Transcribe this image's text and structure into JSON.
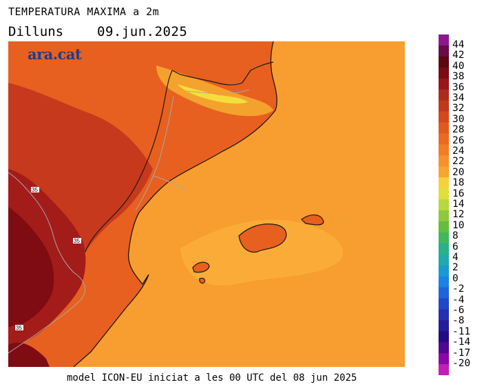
{
  "header": {
    "title": "TEMPERATURA MAXIMA a 2m",
    "day": "Dilluns",
    "date": "09.jun.2025"
  },
  "logo": "ara.cat",
  "footer": "model ICON-EU iniciat a les 00 UTC del 08 jun 2025",
  "map_labels": [
    "35",
    "35",
    "35"
  ],
  "colorbar": {
    "levels": [
      "44",
      "42",
      "40",
      "38",
      "36",
      "34",
      "32",
      "30",
      "28",
      "26",
      "24",
      "22",
      "20",
      "18",
      "16",
      "14",
      "12",
      "10",
      "8",
      "6",
      "4",
      "2",
      "0",
      "-2",
      "-4",
      "-6",
      "-8",
      "-11",
      "-14",
      "-17",
      "-20"
    ],
    "colors": [
      "#8a1a8c",
      "#6a0a4a",
      "#5a0710",
      "#7a0a14",
      "#96161a",
      "#b02a1c",
      "#c2381c",
      "#d2491e",
      "#e05a1f",
      "#ea6a22",
      "#f27d25",
      "#f7912a",
      "#f8a430",
      "#f4d23a",
      "#dfe03c",
      "#b8d83c",
      "#8ec83c",
      "#64be3e",
      "#40b85c",
      "#2ab08a",
      "#20aab0",
      "#1c9ad0",
      "#1c82e4",
      "#1e64dc",
      "#2246c8",
      "#2430b0",
      "#241c98",
      "#240c80",
      "#500890",
      "#8a08a8",
      "#c020b8"
    ]
  },
  "map_colors": {
    "sea": "#f89d30",
    "sea_light": "#fbac38",
    "land": "#e7601f",
    "land_dark": "#c7391c",
    "land_hot": "#a31c1a",
    "land_hottest": "#7e0c12",
    "mountain": "#f4a22e",
    "mountain_cold": "#f5de3c",
    "coast": "#1a1a1a",
    "border": "#a8a8a8"
  }
}
